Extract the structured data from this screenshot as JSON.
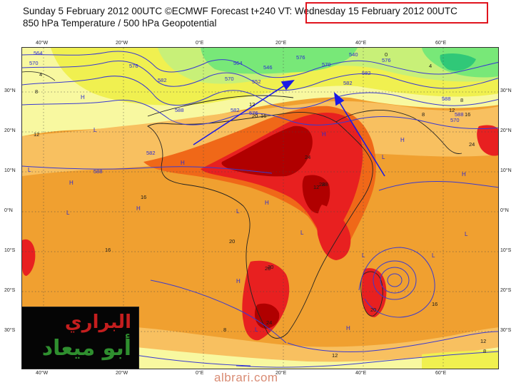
{
  "header": {
    "line1": "Sunday 5 February 2012 00UTC ©ECMWF Forecast t+240 VT: Wednesday 15 February 2012 00UTC",
    "line2": "850 hPa Temperature / 500 hPa Geopotential"
  },
  "highlight_color": "#e0141e",
  "axes": {
    "x_ticks_top": [
      "40°W",
      "20°W",
      "0°E",
      "20°E",
      "40°E",
      "60°E"
    ],
    "x_ticks_bottom": [
      "40°W",
      "20°W",
      "0°E",
      "20°E",
      "40°E",
      "60°E"
    ],
    "y_ticks_left": [
      "30°N",
      "20°N",
      "10°N",
      "0°N",
      "10°S",
      "20°S",
      "30°S"
    ],
    "y_ticks_right": [
      "30°N",
      "20°N",
      "10°N",
      "0°N",
      "10°S",
      "20°S",
      "30°S"
    ]
  },
  "contour_labels": [
    "564",
    "570",
    "576",
    "582",
    "588",
    "588",
    "582",
    "576",
    "570",
    "564",
    "552",
    "546",
    "540",
    "576",
    "582",
    "588",
    "588",
    "570",
    "582",
    "576",
    "570",
    "582"
  ],
  "temperature_labels": [
    "4",
    "8",
    "12",
    "16",
    "20",
    "24",
    "28",
    "8",
    "12",
    "16",
    "20",
    "24",
    "20",
    "16",
    "12",
    "8",
    "0",
    "4",
    "8",
    "12",
    "16",
    "24",
    "12",
    "8",
    "12",
    "20",
    "28",
    "16",
    "20"
  ],
  "pressure_centers": [
    "H",
    "L",
    "H",
    "L",
    "H",
    "L",
    "H",
    "L",
    "H",
    "L",
    "H",
    "L",
    "H",
    "L",
    "H",
    "L",
    "L",
    "H",
    "L",
    "H"
  ],
  "colors": {
    "light_yellow": "#f8f8a0",
    "yellow": "#f0f050",
    "yellow_green": "#c8f078",
    "green": "#78e878",
    "dark_green": "#30c878",
    "light_orange": "#f8b848",
    "orange": "#f09020",
    "dark_orange": "#f06818",
    "red": "#e82020",
    "dark_red": "#b00000",
    "contour_blue": "#3a3ad0",
    "arrow_blue": "#1a1ae6"
  },
  "logo": {
    "line1": "البراري",
    "line2": "أبو ميعاد"
  },
  "watermark": "albrari.com"
}
